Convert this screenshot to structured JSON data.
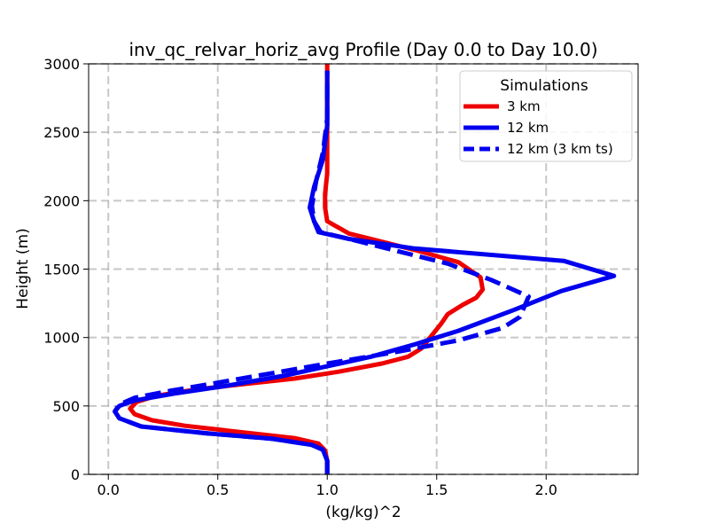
{
  "chart_data": {
    "type": "line",
    "title": "inv_qc_relvar_horiz_avg Profile (Day 0.0 to Day 10.0)",
    "xlabel": "(kg/kg)^2",
    "ylabel": "Height (m)",
    "xlim": [
      -0.09,
      2.42
    ],
    "ylim": [
      0,
      3000
    ],
    "xticks": [
      0.0,
      0.5,
      1.0,
      1.5,
      2.0
    ],
    "xtick_labels": [
      "0.0",
      "0.5",
      "1.0",
      "1.5",
      "2.0"
    ],
    "yticks": [
      0,
      500,
      1000,
      1500,
      2000,
      2500,
      3000
    ],
    "ytick_labels": [
      "0",
      "500",
      "1000",
      "1500",
      "2000",
      "2500",
      "3000"
    ],
    "grid": true,
    "legend": {
      "title": "Simulations",
      "placement": "top-right",
      "entries": [
        "3 km",
        "12 km",
        "12 km (3 km ts)"
      ]
    },
    "series": [
      {
        "name": "3 km",
        "color": "#ee0000",
        "style": "solid",
        "points": [
          [
            1.0,
            0
          ],
          [
            1.0,
            100
          ],
          [
            0.99,
            175
          ],
          [
            0.96,
            225
          ],
          [
            0.85,
            265
          ],
          [
            0.6,
            310
          ],
          [
            0.35,
            355
          ],
          [
            0.2,
            395
          ],
          [
            0.12,
            440
          ],
          [
            0.1,
            480
          ],
          [
            0.13,
            530
          ],
          [
            0.22,
            575
          ],
          [
            0.4,
            620
          ],
          [
            0.62,
            660
          ],
          [
            0.85,
            700
          ],
          [
            1.05,
            750
          ],
          [
            1.25,
            810
          ],
          [
            1.37,
            860
          ],
          [
            1.43,
            920
          ],
          [
            1.47,
            1000
          ],
          [
            1.52,
            1100
          ],
          [
            1.55,
            1170
          ],
          [
            1.62,
            1240
          ],
          [
            1.68,
            1290
          ],
          [
            1.71,
            1350
          ],
          [
            1.7,
            1440
          ],
          [
            1.6,
            1550
          ],
          [
            1.4,
            1640
          ],
          [
            1.2,
            1720
          ],
          [
            1.1,
            1760
          ],
          [
            1.0,
            1850
          ],
          [
            0.99,
            1950
          ],
          [
            0.99,
            2050
          ],
          [
            1.0,
            2200
          ],
          [
            1.0,
            2500
          ],
          [
            1.0,
            3000
          ]
        ]
      },
      {
        "name": "12 km",
        "color": "#0000ee",
        "style": "solid",
        "points": [
          [
            1.0,
            0
          ],
          [
            1.0,
            100
          ],
          [
            0.98,
            180
          ],
          [
            0.93,
            215
          ],
          [
            0.75,
            260
          ],
          [
            0.45,
            300
          ],
          [
            0.15,
            350
          ],
          [
            0.05,
            410
          ],
          [
            0.03,
            460
          ],
          [
            0.05,
            500
          ],
          [
            0.12,
            540
          ],
          [
            0.3,
            590
          ],
          [
            0.55,
            650
          ],
          [
            0.8,
            720
          ],
          [
            1.0,
            790
          ],
          [
            1.2,
            860
          ],
          [
            1.4,
            950
          ],
          [
            1.6,
            1050
          ],
          [
            1.85,
            1200
          ],
          [
            2.07,
            1340
          ],
          [
            2.31,
            1450
          ],
          [
            2.08,
            1560
          ],
          [
            1.4,
            1650
          ],
          [
            1.1,
            1720
          ],
          [
            0.96,
            1770
          ],
          [
            0.94,
            1850
          ],
          [
            0.92,
            1950
          ],
          [
            0.94,
            2100
          ],
          [
            0.98,
            2300
          ],
          [
            1.0,
            2550
          ],
          [
            1.0,
            2800
          ],
          [
            1.0,
            2950
          ]
        ]
      },
      {
        "name": "12 km (3 km ts)",
        "color": "#0000ee",
        "style": "dashed",
        "points": [
          [
            1.0,
            0
          ],
          [
            1.0,
            100
          ],
          [
            0.98,
            180
          ],
          [
            0.93,
            215
          ],
          [
            0.75,
            260
          ],
          [
            0.45,
            300
          ],
          [
            0.15,
            350
          ],
          [
            0.05,
            410
          ],
          [
            0.03,
            460
          ],
          [
            0.05,
            510
          ],
          [
            0.12,
            560
          ],
          [
            0.28,
            610
          ],
          [
            0.5,
            670
          ],
          [
            0.75,
            740
          ],
          [
            1.0,
            810
          ],
          [
            1.3,
            890
          ],
          [
            1.6,
            980
          ],
          [
            1.8,
            1070
          ],
          [
            1.88,
            1150
          ],
          [
            1.92,
            1300
          ],
          [
            1.75,
            1420
          ],
          [
            1.55,
            1540
          ],
          [
            1.3,
            1640
          ],
          [
            1.1,
            1720
          ],
          [
            0.97,
            1770
          ],
          [
            0.94,
            1850
          ],
          [
            0.93,
            1960
          ],
          [
            0.95,
            2150
          ],
          [
            0.98,
            2350
          ],
          [
            1.0,
            2600
          ],
          [
            1.0,
            2950
          ]
        ]
      }
    ]
  }
}
